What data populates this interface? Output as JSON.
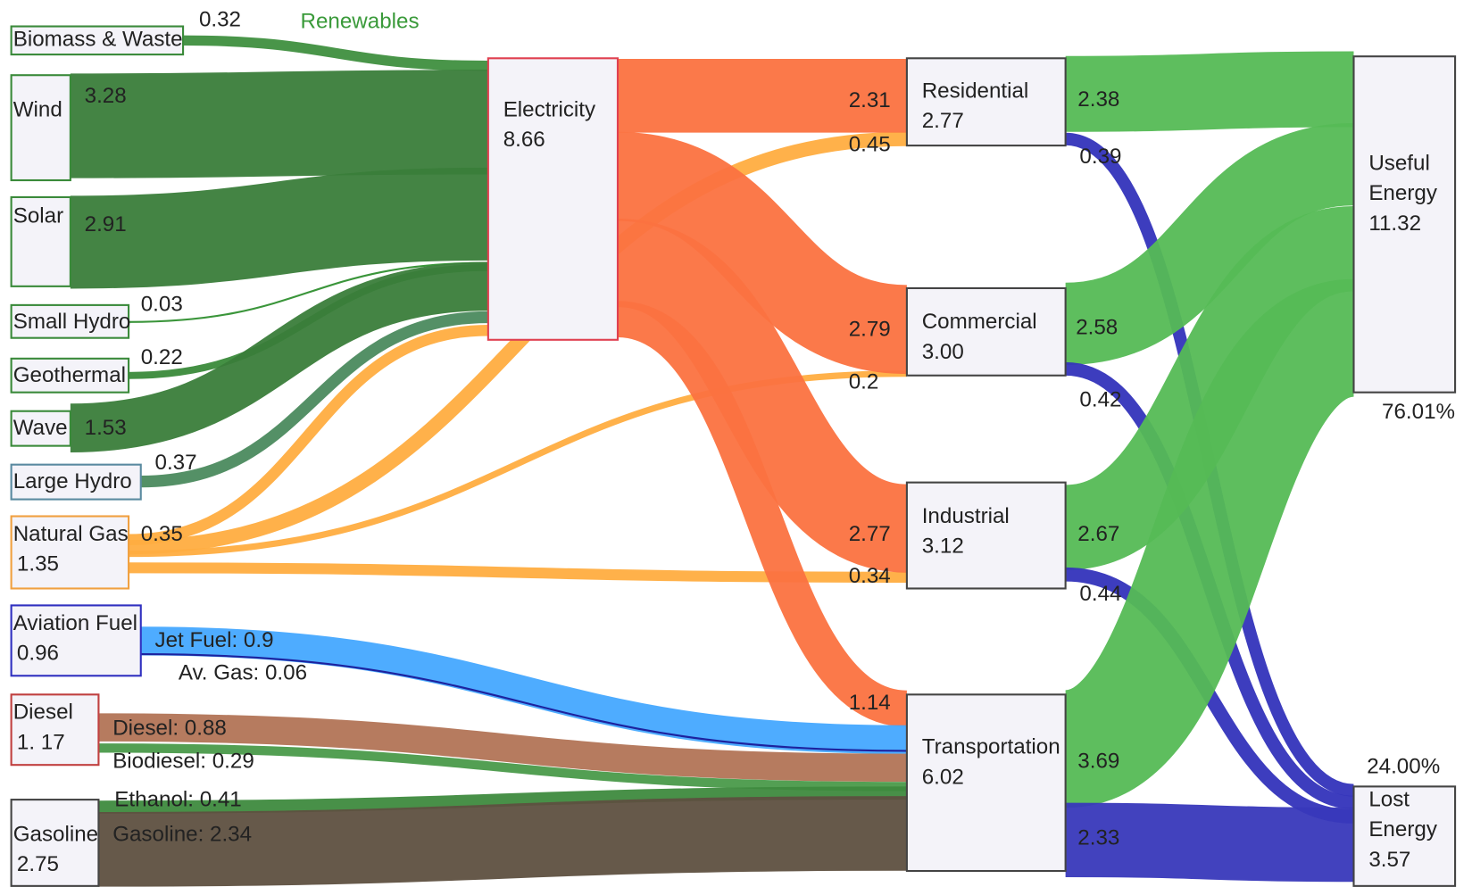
{
  "annotation": "Renewables",
  "nodes": [
    {
      "label": "Biomass & Waste"
    },
    {
      "label": "Wind"
    },
    {
      "label": "Solar"
    },
    {
      "label": "Small Hydro"
    },
    {
      "label": "Geothermal"
    },
    {
      "label": "Wave"
    },
    {
      "label": "Large Hydro"
    },
    {
      "label": "Natural Gas",
      "value": "1.35"
    },
    {
      "label": "Aviation Fuel",
      "value": "0.96"
    },
    {
      "label": "Diesel",
      "value": "1. 17"
    },
    {
      "label": "Gasoline",
      "value": "2.75"
    },
    {
      "label": "Electricity",
      "value": "8.66"
    },
    {
      "label": "Residential",
      "value": "2.77"
    },
    {
      "label": "Commercial",
      "value": "3.00"
    },
    {
      "label": "Industrial",
      "value": "3.12"
    },
    {
      "label": "Transportation",
      "value": "6.02"
    },
    {
      "label": [
        "Useful",
        "Energy"
      ],
      "value": "11.32",
      "share": "76.01%"
    },
    {
      "label": [
        "Lost",
        "Energy"
      ],
      "value": "3.57",
      "share": "24.00%"
    }
  ],
  "links": [
    {
      "value": 0.32,
      "color": "#3f8f3f"
    },
    {
      "value": 3.28,
      "color": "#3a7d3a"
    },
    {
      "value": 2.91,
      "color": "#3a7d3a"
    },
    {
      "value": 0.03,
      "color": "#2f8f2f"
    },
    {
      "value": 0.22,
      "color": "#3a8a3a"
    },
    {
      "value": 1.53,
      "color": "#3a7d3a"
    },
    {
      "value": 0.37,
      "color": "#4b8a5e"
    },
    {
      "value": 0.35,
      "color": "#ffad40"
    },
    {
      "value": 0.45,
      "color": "#ffad40"
    },
    {
      "value": 0.2,
      "color": "#ffad40"
    },
    {
      "value": 0.34,
      "color": "#ffad40"
    },
    {
      "value": 2.31,
      "color": "#fb7240"
    },
    {
      "value": 2.79,
      "color": "#fb7240"
    },
    {
      "value": 2.77,
      "color": "#fb7240"
    },
    {
      "value": 1.14,
      "color": "#fb7240"
    },
    {
      "value": 0.9,
      "label": "Jet Fuel: 0.9",
      "color": "#44a8ff"
    },
    {
      "value": 0.06,
      "label": "Av. Gas: 0.06",
      "color": "#1a1a99"
    },
    {
      "value": 0.88,
      "label": "Diesel: 0.88",
      "color": "#b27456"
    },
    {
      "value": 0.29,
      "label": "Biodiesel: 0.29",
      "color": "#4a9a4a"
    },
    {
      "value": 0.41,
      "label": "Ethanol: 0.41",
      "color": "#3e8a3e"
    },
    {
      "value": 2.34,
      "label": "Gasoline: 2.34",
      "color": "#5e5040"
    },
    {
      "value": 2.38,
      "color": "#55bb55"
    },
    {
      "value": 0.39,
      "color": "#3333bb"
    },
    {
      "value": 2.58,
      "color": "#55bb55"
    },
    {
      "value": 0.42,
      "color": "#3333bb"
    },
    {
      "value": 2.67,
      "color": "#55bb55"
    },
    {
      "value": 0.44,
      "color": "#3333bb"
    },
    {
      "value": 3.69,
      "color": "#55bb55"
    },
    {
      "value": 2.33,
      "color": "#3838bb"
    }
  ]
}
